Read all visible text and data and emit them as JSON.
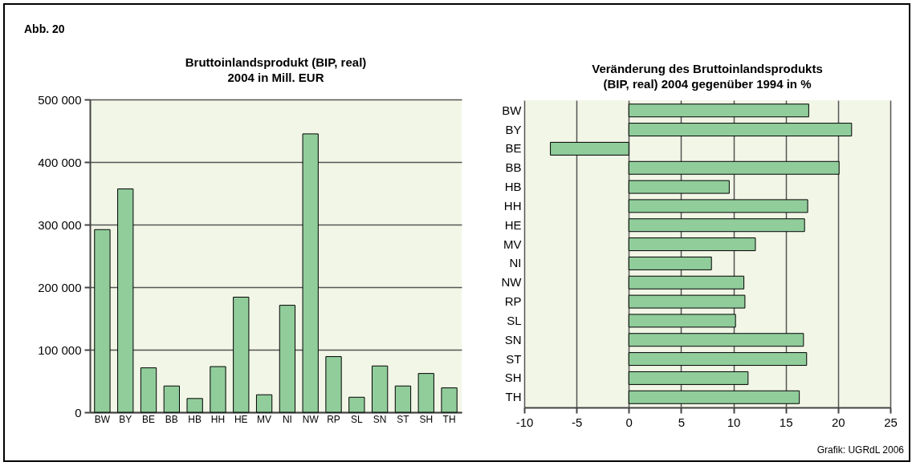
{
  "chart_data": [
    {
      "type": "bar",
      "title": "Bruttoinlandsprodukt (BIP, real)\n2004 in Mill. EUR",
      "categories": [
        "BW",
        "BY",
        "BE",
        "BB",
        "HB",
        "HH",
        "HE",
        "MV",
        "NI",
        "NW",
        "RP",
        "SL",
        "SN",
        "ST",
        "SH",
        "TH"
      ],
      "values": [
        292000,
        357000,
        71000,
        42000,
        22000,
        73000,
        184000,
        28000,
        171000,
        445000,
        89000,
        24000,
        74000,
        42000,
        62000,
        39000
      ],
      "color": "#90cd9b",
      "ylim": [
        0,
        500000
      ],
      "yticks": [
        {
          "value": 0,
          "label": "0"
        },
        {
          "value": 100000,
          "label": "100 000"
        },
        {
          "value": 200000,
          "label": "200 000"
        },
        {
          "value": 300000,
          "label": "300 000"
        },
        {
          "value": 400000,
          "label": "400 000"
        },
        {
          "value": 500000,
          "label": "500 000"
        }
      ],
      "grid": "y",
      "annotations": [
        "Abb. 20"
      ]
    },
    {
      "type": "bar",
      "orientation": "horizontal",
      "title": "Veränderung des Bruttoinlandsprodukts\n(BIP, real) 2004 gegenüber 1994 in %",
      "categories": [
        "BW",
        "BY",
        "BE",
        "BB",
        "HB",
        "HH",
        "HE",
        "MV",
        "NI",
        "NW",
        "RP",
        "SL",
        "SN",
        "ST",
        "SH",
        "TH"
      ],
      "values": [
        17.2,
        21.3,
        -7.5,
        20.1,
        9.6,
        17.1,
        16.8,
        12.1,
        7.9,
        11.0,
        11.1,
        10.2,
        16.7,
        17.0,
        11.4,
        16.3
      ],
      "color": "#90cd9b",
      "xlim": [
        -10,
        25
      ],
      "xticks": [
        -10,
        -5,
        0,
        5,
        10,
        15,
        20,
        25
      ],
      "grid": "x",
      "annotations": [
        "Grafik: UGRdL 2006"
      ]
    }
  ]
}
